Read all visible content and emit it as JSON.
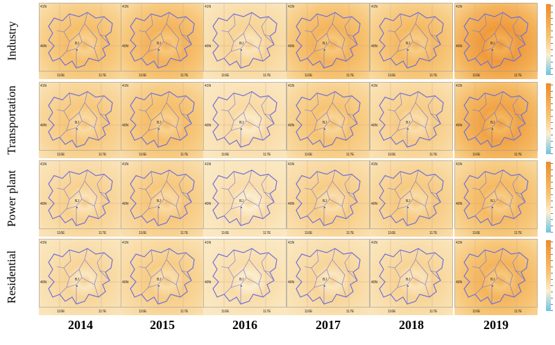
{
  "rows": [
    {
      "label": "Industry",
      "strength": [
        0.45,
        0.55,
        0.22,
        0.55,
        0.5,
        0.8
      ]
    },
    {
      "label": "Transportation",
      "strength": [
        0.35,
        0.45,
        0.15,
        0.4,
        0.3,
        0.72
      ]
    },
    {
      "label": "Power plant",
      "strength": [
        0.25,
        0.35,
        0.12,
        0.3,
        0.33,
        0.5
      ]
    },
    {
      "label": "Residential",
      "strength": [
        0.2,
        0.3,
        0.12,
        0.2,
        0.22,
        0.55
      ]
    }
  ],
  "years": [
    "2014",
    "2015",
    "2016",
    "2017",
    "2018",
    "2019"
  ],
  "map": {
    "lat_top": "41N",
    "lat_mid": "40N",
    "lon_left": "116E",
    "lon_right": "117E",
    "city_label": "BJ"
  },
  "colors": {
    "pale": "#fbeed0",
    "mid": "#f6c26e",
    "deep": "#ee8e2a",
    "boundary": "#6f6fd8",
    "colorbar_top": "#ef8b28",
    "colorbar_bottom": "#6cc4e6"
  }
}
